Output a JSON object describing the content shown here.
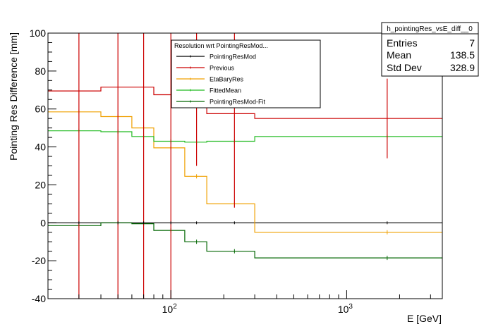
{
  "chart_data": {
    "type": "line",
    "title": "",
    "xlabel": "E [GeV]",
    "ylabel": "Pointing Res Difference [mm]",
    "xscale": "log",
    "xlim": [
      20,
      3500
    ],
    "ylim": [
      -40,
      100
    ],
    "yticks": [
      -40,
      -20,
      0,
      20,
      40,
      60,
      80,
      100
    ],
    "xtick_labels": [
      {
        "value": 100,
        "base": "10",
        "exp": "2"
      },
      {
        "value": 1000,
        "base": "10",
        "exp": "3"
      }
    ],
    "grid": false,
    "bin_edges": [
      20,
      40,
      60,
      80,
      120,
      160,
      300,
      3500
    ],
    "series": [
      {
        "name": "PointingResMod",
        "color": "#000000",
        "values": [
          0,
          0,
          0,
          0,
          0,
          0,
          0
        ]
      },
      {
        "name": "Previous",
        "color": "#cc0000",
        "values": [
          69.5,
          71.5,
          71.5,
          67.5,
          63.5,
          57.5,
          55
        ],
        "marker_x": [
          30,
          50,
          70,
          100,
          140,
          230,
          1700
        ],
        "marker_y": [
          69.5,
          71.5,
          71.5,
          67.5,
          63.5,
          57.5,
          55
        ],
        "error_low": [
          -40,
          -40,
          -40,
          -40,
          30,
          8,
          34
        ],
        "error_high": [
          100,
          100,
          100,
          100,
          100,
          100,
          76
        ]
      },
      {
        "name": "EtaBaryRes",
        "color": "#f0a000",
        "values": [
          58.5,
          56,
          50,
          39.5,
          24.5,
          10,
          -5
        ]
      },
      {
        "name": "FittedMean",
        "color": "#22bb22",
        "values": [
          48.5,
          48,
          45.5,
          43,
          42.5,
          43,
          45.5
        ]
      },
      {
        "name": "PointingResMod-Fit",
        "color": "#006600",
        "values": [
          -1.5,
          0,
          -0.5,
          -4,
          -10,
          -15,
          -18.5
        ]
      }
    ],
    "legend": {
      "title": "Resolution wrt PointingResMod...",
      "position": "top-center",
      "entries": [
        "PointingResMod",
        "Previous",
        "EtaBaryRes",
        "FittedMean",
        "PointingResMod-Fit"
      ]
    },
    "stats": {
      "title": "h_pointingRes_vsE_diff__0",
      "position": "top-right",
      "rows": [
        {
          "label": "Entries",
          "value": "7"
        },
        {
          "label": "Mean",
          "value": "138.5"
        },
        {
          "label": "Std Dev",
          "value": "328.9"
        }
      ]
    }
  }
}
